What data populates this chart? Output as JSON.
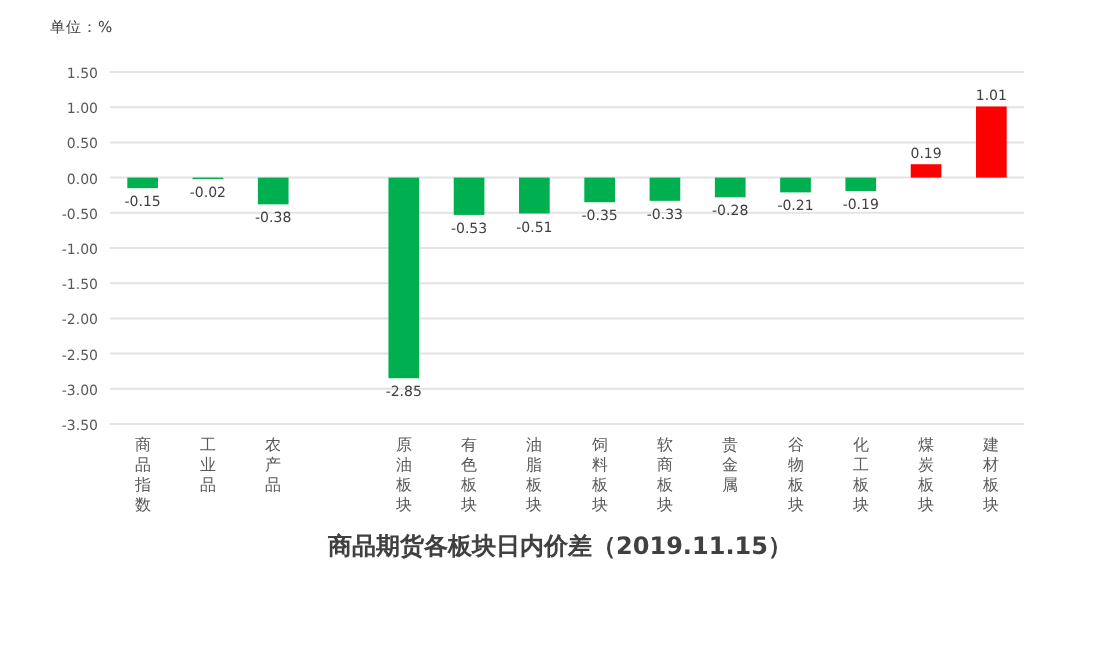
{
  "chart_data": {
    "type": "bar",
    "title": "商品期货各板块日内价差（2019.11.15）",
    "ylabel": "单位：%",
    "categories": [
      "商品指数",
      "工业品",
      "农产品",
      null,
      "原油板块",
      "有色板块",
      "油脂板块",
      "饲料板块",
      "软商板块",
      "贵金属",
      "谷物板块",
      "化工板块",
      "煤炭板块",
      "建材板块"
    ],
    "values": [
      -0.15,
      -0.02,
      -0.38,
      null,
      -2.85,
      -0.53,
      -0.51,
      -0.35,
      -0.33,
      -0.28,
      -0.21,
      -0.19,
      0.19,
      1.01
    ],
    "colors": [
      "#00b050",
      "#00b050",
      "#00b050",
      null,
      "#00b050",
      "#00b050",
      "#00b050",
      "#00b050",
      "#00b050",
      "#00b050",
      "#00b050",
      "#00b050",
      "#ff0000",
      "#ff0000"
    ],
    "ylim": [
      -3.5,
      1.5
    ],
    "yticks": [
      {
        "value": 1.5,
        "label": "1.50"
      },
      {
        "value": 1.0,
        "label": "1.00"
      },
      {
        "value": 0.5,
        "label": "0.50"
      },
      {
        "value": 0,
        "label": "0.00"
      },
      {
        "value": -0.5,
        "label": "-0.50"
      },
      {
        "value": -1.0,
        "label": "-1.00"
      },
      {
        "value": -1.5,
        "label": "-1.50"
      },
      {
        "value": -2.0,
        "label": "-2.00"
      },
      {
        "value": -2.5,
        "label": "-2.50"
      },
      {
        "value": -3.0,
        "label": "-3.00"
      },
      {
        "value": -3.5,
        "label": "-3.50"
      }
    ],
    "grid": "y",
    "data_labels": true
  }
}
